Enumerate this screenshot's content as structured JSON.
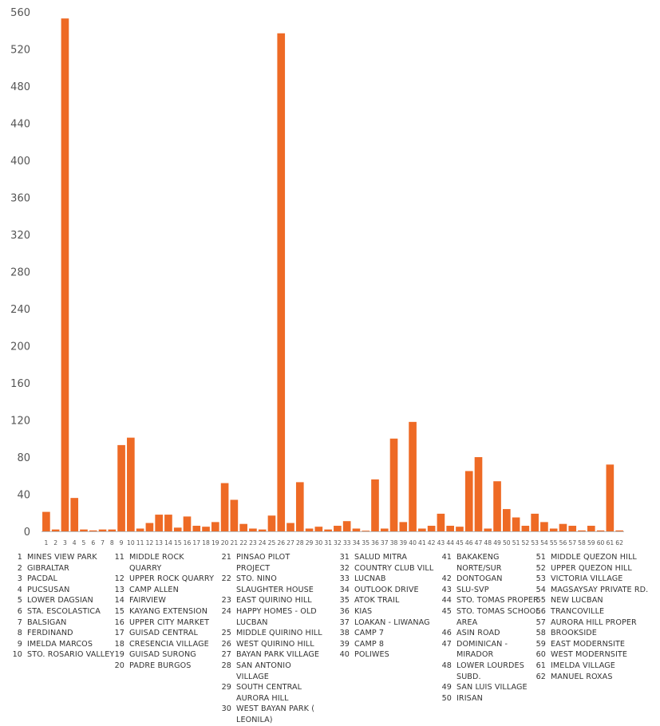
{
  "chart_data": {
    "type": "bar",
    "title": "",
    "xlabel": "",
    "ylabel": "",
    "ylim": [
      0,
      560
    ],
    "yticks": [
      0,
      40,
      80,
      120,
      160,
      200,
      240,
      280,
      320,
      360,
      400,
      440,
      480,
      520,
      560
    ],
    "grid": false,
    "bar_color": "#ee6a25",
    "categories": [
      "1",
      "2",
      "3",
      "4",
      "5",
      "6",
      "7",
      "8",
      "9",
      "10",
      "11",
      "12",
      "13",
      "14",
      "15",
      "16",
      "17",
      "18",
      "19",
      "20",
      "21",
      "22",
      "23",
      "24",
      "25",
      "26",
      "27",
      "28",
      "29",
      "30",
      "31",
      "32",
      "33",
      "34",
      "35",
      "36",
      "37",
      "38",
      "39",
      "40",
      "41",
      "42",
      "43",
      "44",
      "45",
      "46",
      "47",
      "48",
      "49",
      "50",
      "51",
      "52",
      "53",
      "54",
      "55",
      "56",
      "57",
      "58",
      "59",
      "60",
      "61",
      "62"
    ],
    "values": [
      21,
      2,
      553,
      36,
      2,
      1,
      2,
      2,
      93,
      101,
      3,
      9,
      18,
      18,
      4,
      16,
      6,
      5,
      10,
      52,
      34,
      8,
      3,
      2,
      17,
      537,
      9,
      53,
      3,
      5,
      2,
      6,
      11,
      3,
      0,
      56,
      3,
      100,
      10,
      118,
      3,
      6,
      19,
      6,
      5,
      65,
      80,
      3,
      54,
      24,
      15,
      6,
      19,
      10,
      3,
      8,
      6,
      1,
      6,
      1,
      72,
      1
    ],
    "legend": [
      {
        "num": "1",
        "name": "MINES VIEW PARK"
      },
      {
        "num": "2",
        "name": "GIBRALTAR"
      },
      {
        "num": "3",
        "name": "PACDAL"
      },
      {
        "num": "4",
        "name": "PUCSUSAN"
      },
      {
        "num": "5",
        "name": "LOWER DAGSIAN"
      },
      {
        "num": "6",
        "name": "STA. ESCOLASTICA"
      },
      {
        "num": "7",
        "name": "BALSIGAN"
      },
      {
        "num": "8",
        "name": "FERDINAND"
      },
      {
        "num": "9",
        "name": "IMELDA MARCOS"
      },
      {
        "num": "10",
        "name": "STO. ROSARIO VALLEY"
      },
      {
        "num": "11",
        "name": "MIDDLE ROCK QUARRY"
      },
      {
        "num": "12",
        "name": "UPPER ROCK QUARRY"
      },
      {
        "num": "13",
        "name": "CAMP ALLEN"
      },
      {
        "num": "14",
        "name": "FAIRVIEW"
      },
      {
        "num": "15",
        "name": "KAYANG EXTENSION"
      },
      {
        "num": "16",
        "name": "UPPER CITY MARKET"
      },
      {
        "num": "17",
        "name": "GUISAD CENTRAL"
      },
      {
        "num": "18",
        "name": "CRESENCIA VILLAGE"
      },
      {
        "num": "19",
        "name": "GUISAD SURONG"
      },
      {
        "num": "20",
        "name": "PADRE BURGOS"
      },
      {
        "num": "21",
        "name": "PINSAO PILOT PROJECT"
      },
      {
        "num": "22",
        "name": "STO. NINO SLAUGHTER HOUSE"
      },
      {
        "num": "23",
        "name": "EAST QUIRINO HILL"
      },
      {
        "num": "24",
        "name": "HAPPY HOMES - OLD LUCBAN"
      },
      {
        "num": "25",
        "name": "MIDDLE QUIRINO HILL"
      },
      {
        "num": "26",
        "name": "WEST QUIRINO HILL"
      },
      {
        "num": "27",
        "name": "BAYAN PARK VILLAGE"
      },
      {
        "num": "28",
        "name": "SAN ANTONIO VILLAGE"
      },
      {
        "num": "29",
        "name": "SOUTH CENTRAL AURORA HILL"
      },
      {
        "num": "30",
        "name": "WEST BAYAN PARK ( LEONILA)"
      },
      {
        "num": "31",
        "name": "SALUD MITRA"
      },
      {
        "num": "32",
        "name": "COUNTRY CLUB VILL"
      },
      {
        "num": "33",
        "name": "LUCNAB"
      },
      {
        "num": "34",
        "name": "OUTLOOK DRIVE"
      },
      {
        "num": "35",
        "name": "ATOK TRAIL"
      },
      {
        "num": "36",
        "name": "KIAS"
      },
      {
        "num": "37",
        "name": "LOAKAN - LIWANAG"
      },
      {
        "num": "38",
        "name": "CAMP 7"
      },
      {
        "num": "39",
        "name": "CAMP 8"
      },
      {
        "num": "40",
        "name": "POLIWES"
      },
      {
        "num": "41",
        "name": "BAKAKENG NORTE/SUR"
      },
      {
        "num": "42",
        "name": "DONTOGAN"
      },
      {
        "num": "43",
        "name": "SLU-SVP"
      },
      {
        "num": "44",
        "name": "STO. TOMAS PROPER"
      },
      {
        "num": "45",
        "name": "STO. TOMAS SCHOOL AREA"
      },
      {
        "num": "46",
        "name": "ASIN ROAD"
      },
      {
        "num": "47",
        "name": "DOMINICAN - MIRADOR"
      },
      {
        "num": "48",
        "name": "LOWER LOURDES SUBD."
      },
      {
        "num": "49",
        "name": "SAN LUIS VILLAGE"
      },
      {
        "num": "50",
        "name": "IRISAN"
      },
      {
        "num": "51",
        "name": "MIDDLE QUEZON HILL"
      },
      {
        "num": "52",
        "name": "UPPER QUEZON HILL"
      },
      {
        "num": "53",
        "name": "VICTORIA VILLAGE"
      },
      {
        "num": "54",
        "name": "MAGSAYSAY PRIVATE RD."
      },
      {
        "num": "55",
        "name": "NEW LUCBAN"
      },
      {
        "num": "56",
        "name": "TRANCOVILLE"
      },
      {
        "num": "57",
        "name": "AURORA HILL PROPER"
      },
      {
        "num": "58",
        "name": "BROOKSIDE"
      },
      {
        "num": "59",
        "name": "EAST MODERNSITE"
      },
      {
        "num": "60",
        "name": "WEST MODERNSITE"
      },
      {
        "num": "61",
        "name": "IMELDA VILLAGE"
      },
      {
        "num": "62",
        "name": "MANUEL ROXAS"
      }
    ]
  }
}
